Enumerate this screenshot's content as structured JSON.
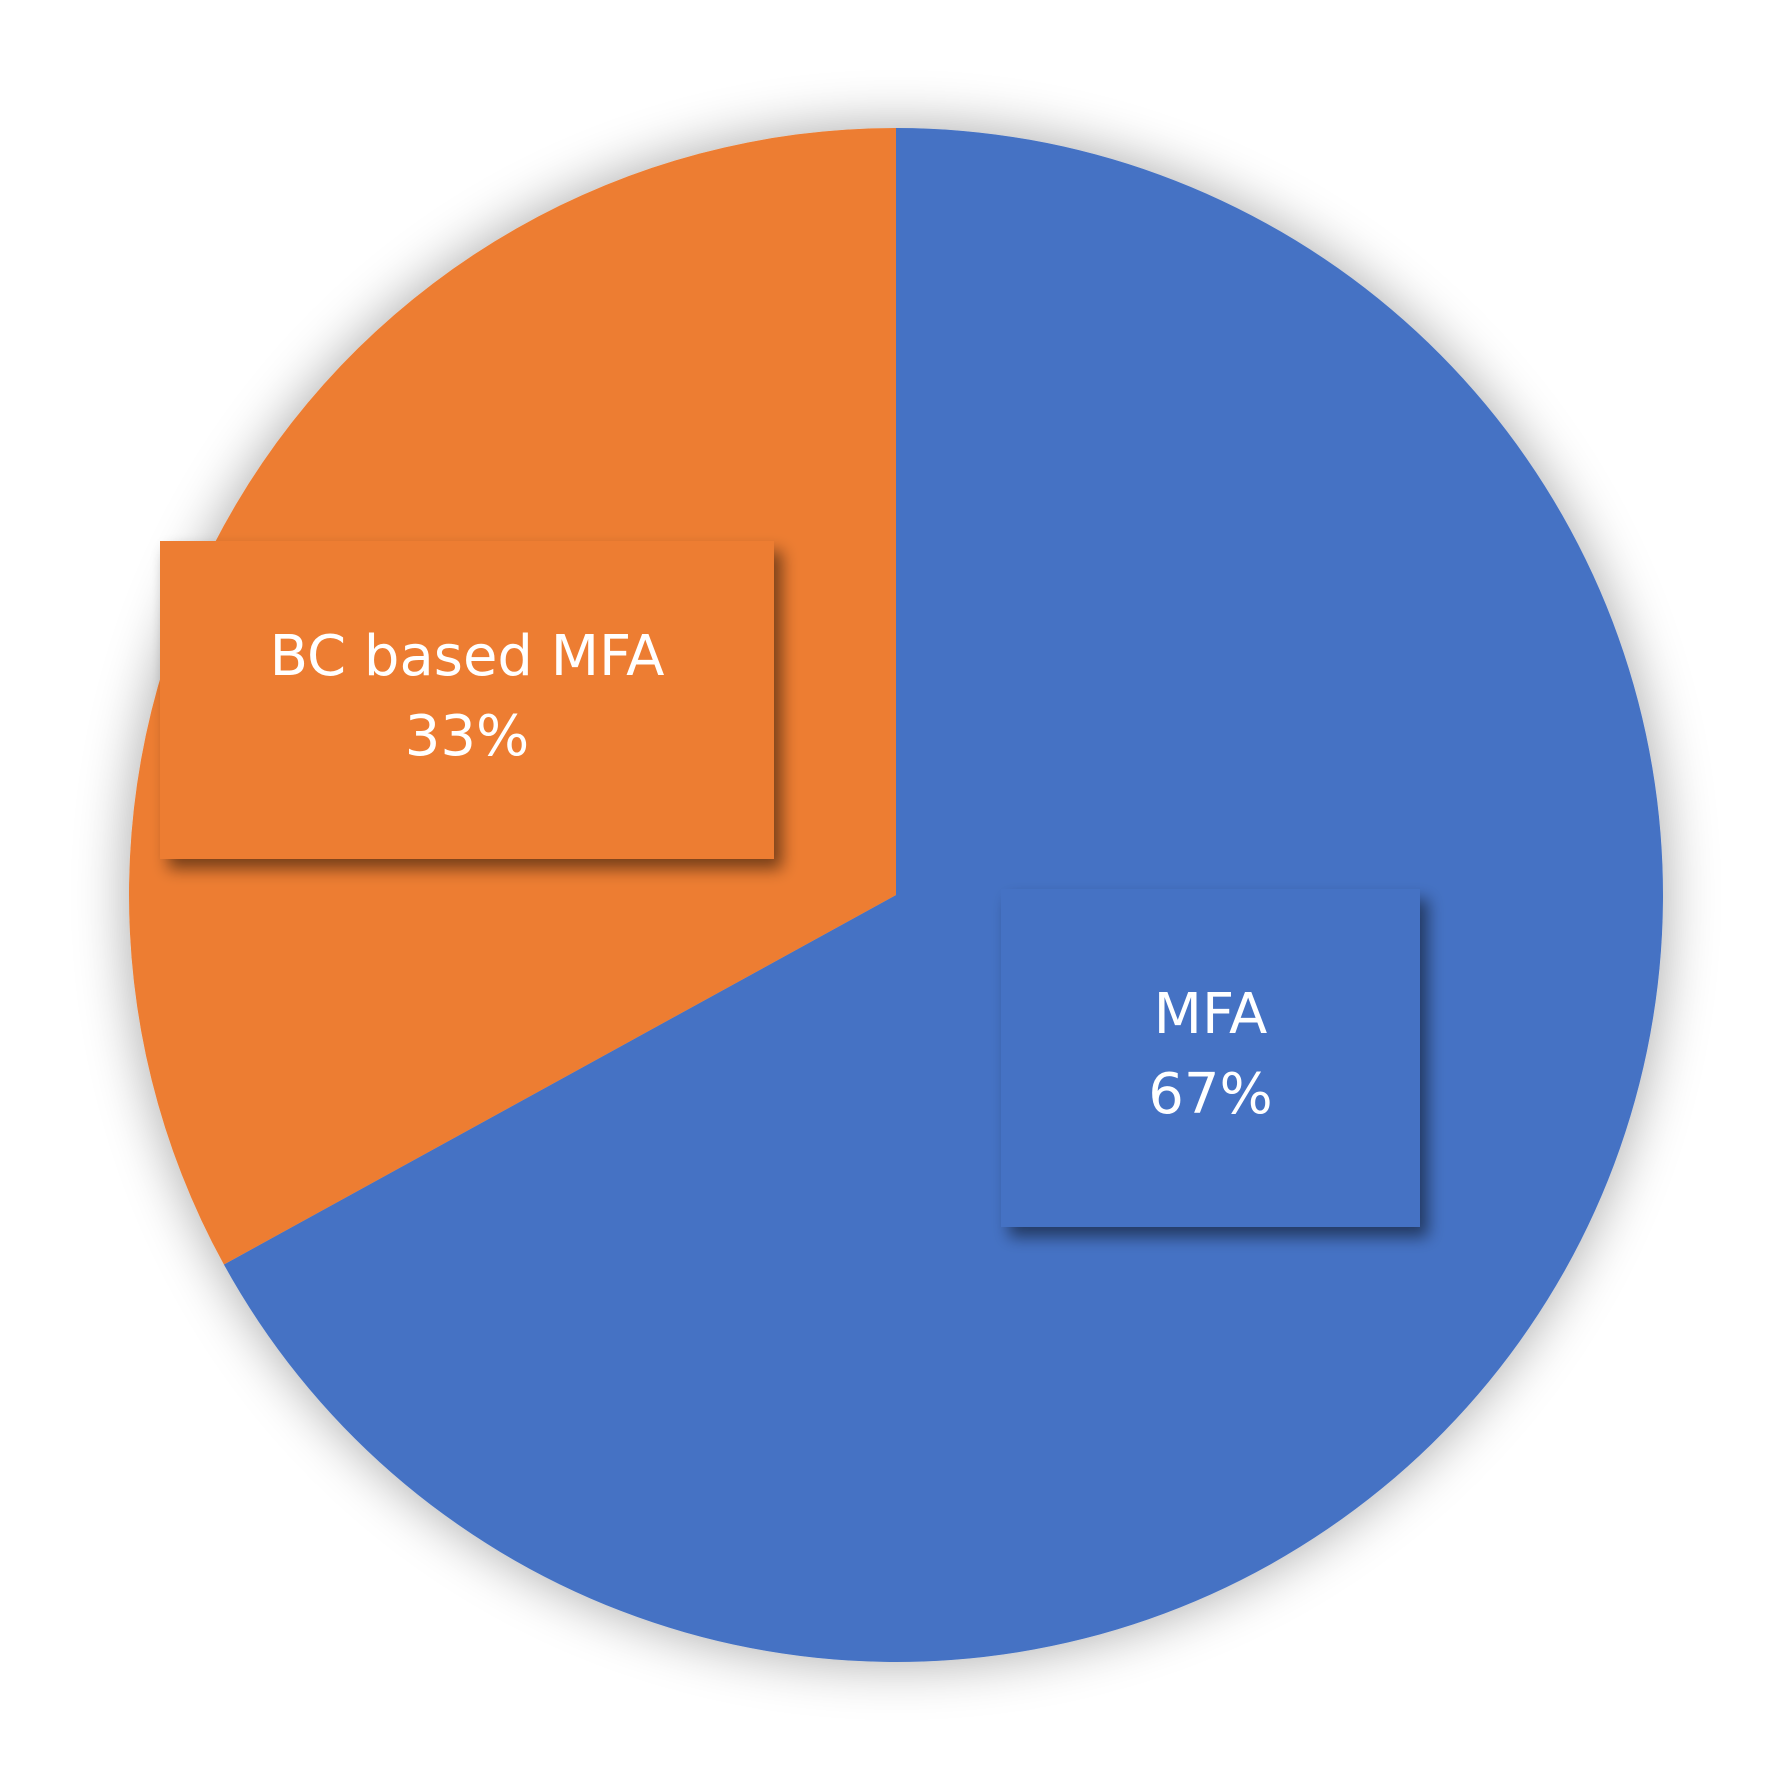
{
  "chart_data": {
    "type": "pie",
    "categories": [
      "MFA",
      "BC based MFA"
    ],
    "values": [
      67,
      33
    ],
    "value_labels": [
      "67%",
      "33%"
    ],
    "colors": [
      "#4472c4",
      "#ed7d31"
    ]
  }
}
